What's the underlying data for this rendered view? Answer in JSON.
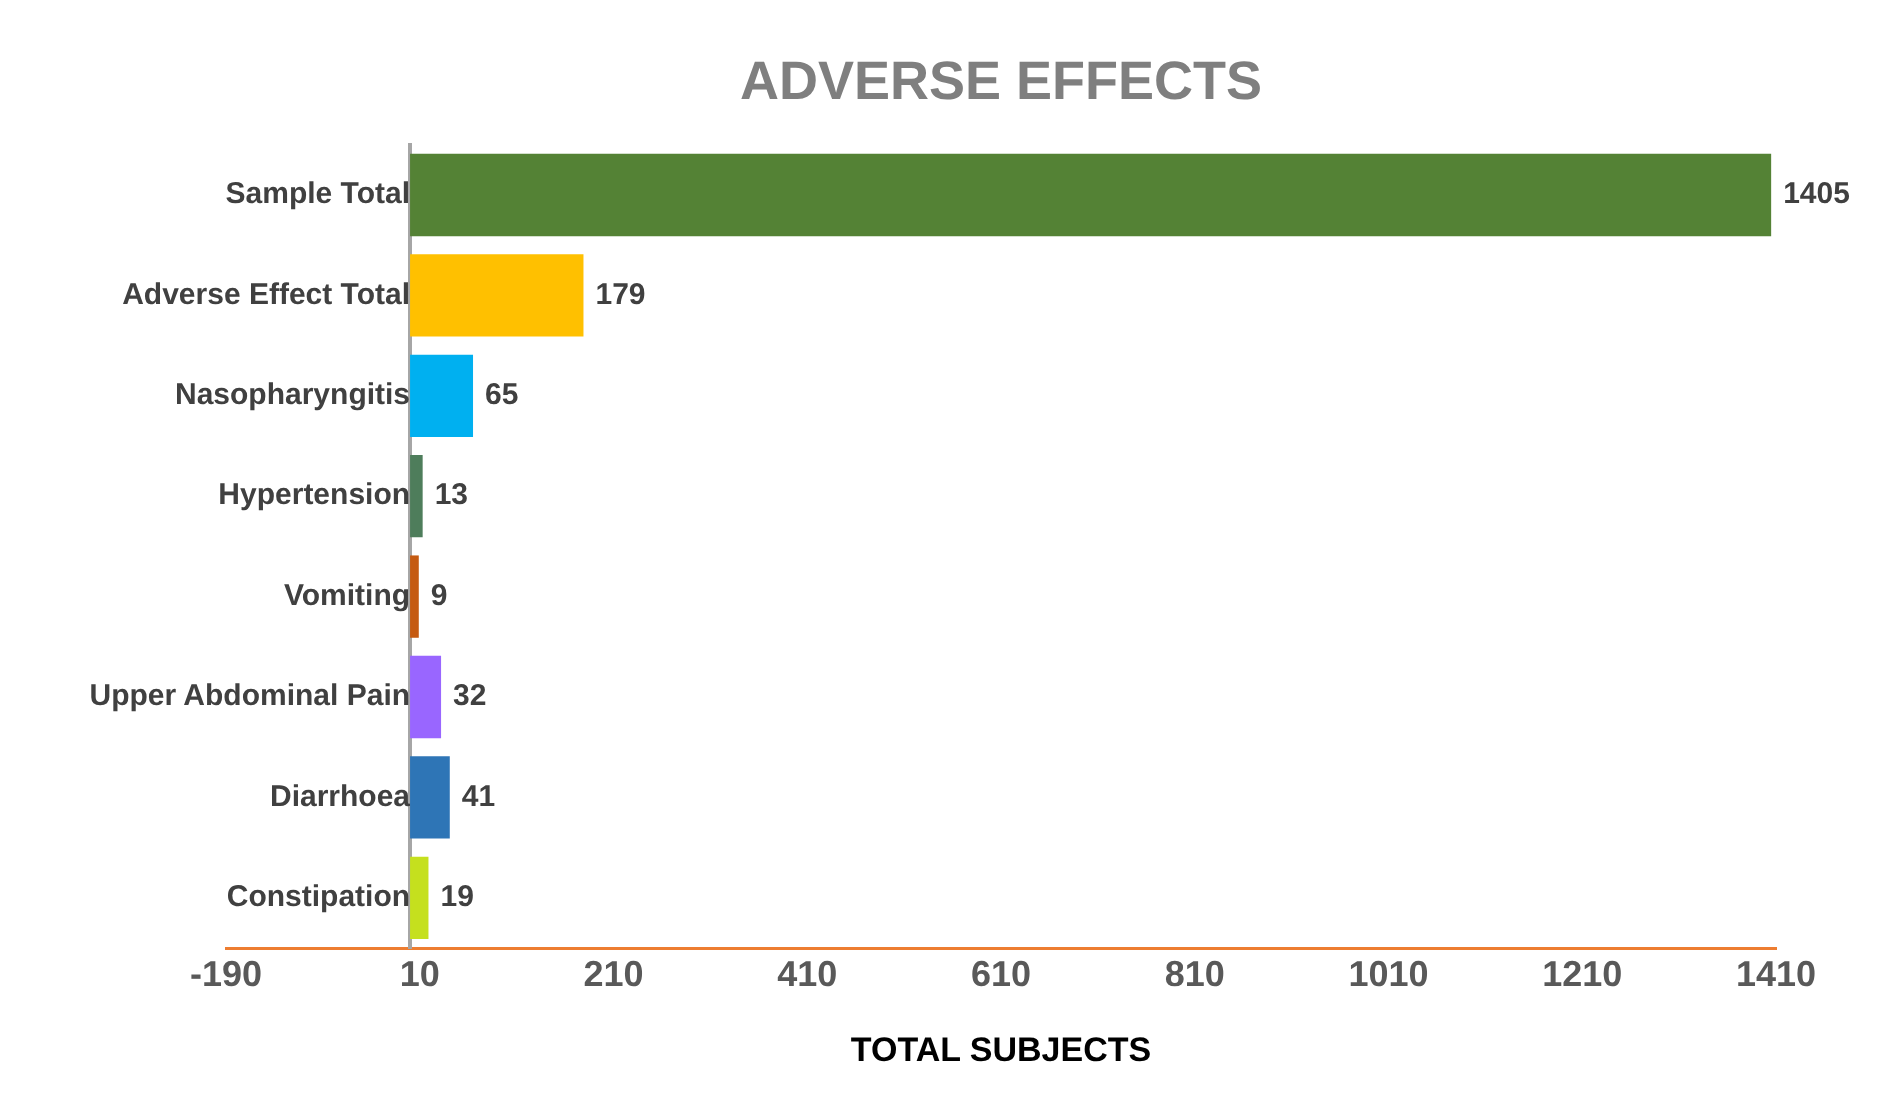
{
  "chart_data": {
    "type": "bar",
    "orientation": "horizontal",
    "title": "ADVERSE EFFECTS",
    "xlabel": "TOTAL SUBJECTS",
    "categories": [
      "Sample Total",
      "Adverse Effect Total",
      "Nasopharyngitis",
      "Hypertension",
      "Vomiting",
      "Upper Abdominal Pain",
      "Diarrhoea",
      "Constipation"
    ],
    "values": [
      1405,
      179,
      65,
      13,
      9,
      32,
      41,
      19
    ],
    "colors": [
      "#548235",
      "#ffc000",
      "#00b0f0",
      "#4e7d5b",
      "#c55a11",
      "#9966ff",
      "#2e75b6",
      "#c5e01e"
    ],
    "xlim": [
      -190,
      1410
    ],
    "xticks": [
      -190,
      10,
      210,
      410,
      610,
      810,
      1010,
      1210,
      1410
    ],
    "grid": false,
    "legend": false,
    "data_labels": true
  }
}
